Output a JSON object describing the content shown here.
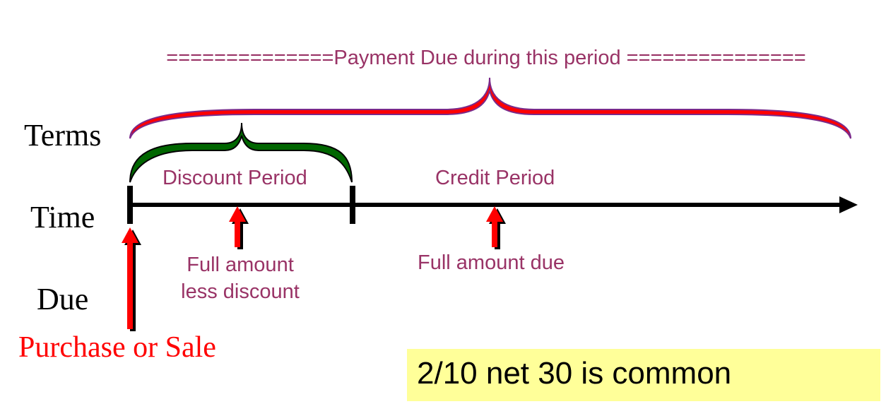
{
  "diagram": {
    "payment_period_label": "==============Payment Due during this period ===============",
    "row_labels": {
      "terms": "Terms",
      "time": "Time",
      "due": "Due"
    },
    "event_label": "Purchase or Sale",
    "periods": {
      "discount": "Discount Period",
      "credit": "Credit Period"
    },
    "due_points": {
      "discount": [
        "Full amount",
        "less discount"
      ],
      "credit": "Full amount due"
    },
    "note": "2/10 net 30 is common",
    "colors": {
      "payment_brace": "#ff0000",
      "discount_brace": "#006600",
      "label_text": "#993366",
      "event_text": "#ff0000",
      "arrow": "#ff0000",
      "note_background": "#ffff99"
    }
  }
}
